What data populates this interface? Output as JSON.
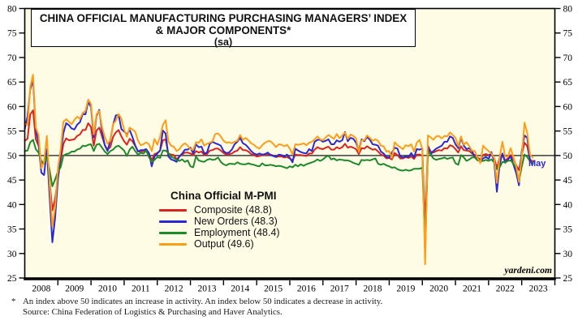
{
  "title": {
    "line1": "CHINA OFFICIAL MANUFACTURING PURCHASING MANAGERS’ INDEX",
    "line2": "& MAJOR COMPONENTS*",
    "line3": "(sa)"
  },
  "legend": {
    "header": "China Official M-PMI",
    "items": [
      {
        "label": "Composite (48.8)"
      },
      {
        "label": "New Orders (48.3)"
      },
      {
        "label": "Employment (48.4)"
      },
      {
        "label": "Output (49.6)"
      }
    ]
  },
  "annotation": {
    "latest_month": "May",
    "color": "#2a2ad0"
  },
  "watermark": "yardeni.com",
  "footnotes": {
    "marker": "*",
    "note": "An index above 50 indicates an increase in activity. An index below 50 indicates a decrease in activity.",
    "source": "Source: China Federation of Logistics & Purchasing and Haver Analytics."
  },
  "chart_data": {
    "type": "line",
    "frequency": "monthly",
    "x_start": "2008-01",
    "x_end": "2023-05",
    "axis_months_span": 192,
    "x_axis_years": [
      "2008",
      "2009",
      "2010",
      "2011",
      "2012",
      "2013",
      "2014",
      "2015",
      "2016",
      "2017",
      "2018",
      "2019",
      "2020",
      "2021",
      "2022",
      "2023"
    ],
    "ylim": [
      25,
      80
    ],
    "ytick_step": 5,
    "reference_line": 50,
    "plot_background": "#fffce6",
    "grid": "off",
    "legend_position": "center-left inside plot",
    "series": [
      {
        "name": "Composite",
        "color": "#d9251d",
        "values": [
          53.0,
          53.4,
          58.4,
          59.2,
          53.3,
          52.0,
          48.4,
          48.4,
          51.2,
          44.6,
          38.8,
          41.2,
          45.3,
          49.0,
          52.4,
          53.5,
          53.1,
          53.2,
          53.3,
          54.0,
          54.3,
          55.2,
          55.2,
          56.6,
          55.8,
          52.0,
          55.1,
          55.7,
          53.9,
          52.1,
          51.2,
          51.7,
          53.8,
          54.7,
          55.2,
          53.9,
          52.9,
          52.2,
          53.4,
          52.9,
          52.0,
          50.9,
          50.7,
          50.9,
          51.2,
          50.4,
          49.0,
          50.3,
          50.5,
          51.0,
          53.1,
          53.3,
          50.4,
          50.2,
          50.1,
          49.2,
          49.8,
          50.2,
          50.6,
          50.6,
          50.4,
          50.1,
          50.9,
          50.6,
          50.8,
          50.1,
          50.3,
          51.0,
          51.1,
          51.4,
          51.4,
          51.0,
          50.5,
          50.2,
          50.3,
          50.4,
          50.8,
          51.0,
          51.7,
          51.1,
          51.1,
          50.8,
          50.3,
          50.1,
          49.8,
          49.9,
          50.1,
          50.1,
          50.2,
          50.2,
          50.0,
          49.7,
          49.8,
          49.8,
          49.6,
          49.7,
          49.4,
          49.0,
          50.2,
          50.1,
          50.1,
          50.0,
          49.9,
          50.4,
          50.4,
          51.2,
          51.7,
          51.4,
          51.3,
          51.6,
          51.8,
          51.2,
          51.2,
          51.7,
          51.4,
          51.7,
          52.4,
          51.6,
          51.8,
          51.6,
          51.3,
          50.3,
          51.5,
          51.4,
          51.9,
          51.5,
          51.2,
          51.3,
          50.8,
          50.2,
          50.0,
          49.4,
          49.5,
          49.2,
          50.5,
          50.1,
          49.4,
          49.4,
          49.7,
          49.5,
          49.8,
          49.3,
          50.2,
          50.2,
          50.0,
          35.7,
          52.0,
          50.8,
          50.6,
          50.9,
          51.1,
          51.0,
          51.5,
          51.4,
          52.1,
          51.9,
          51.3,
          50.6,
          51.9,
          51.1,
          51.0,
          50.9,
          50.4,
          50.1,
          49.6,
          49.2,
          50.1,
          50.3,
          50.1,
          50.2,
          49.5,
          47.4,
          49.6,
          50.2,
          49.0,
          49.4,
          50.1,
          49.2,
          48.0,
          47.0,
          50.1,
          52.6,
          51.9,
          49.2,
          48.8
        ]
      },
      {
        "name": "New Orders",
        "color": "#2a2ad0",
        "values": [
          55.4,
          58.0,
          63.5,
          65.5,
          55.4,
          52.5,
          46.5,
          46.0,
          51.3,
          41.7,
          32.3,
          37.3,
          45.0,
          50.4,
          54.6,
          56.6,
          56.2,
          55.5,
          55.3,
          56.3,
          56.8,
          58.5,
          58.4,
          61.0,
          59.9,
          53.7,
          58.1,
          59.3,
          54.8,
          52.1,
          50.9,
          53.1,
          56.3,
          58.2,
          58.3,
          55.4,
          54.9,
          54.3,
          55.2,
          53.8,
          52.1,
          50.8,
          51.1,
          51.1,
          51.3,
          50.5,
          47.8,
          49.8,
          50.4,
          51.0,
          55.1,
          54.5,
          49.8,
          49.2,
          49.0,
          48.7,
          49.8,
          50.4,
          51.2,
          51.2,
          51.6,
          50.4,
          52.3,
          51.7,
          51.8,
          50.4,
          50.6,
          52.4,
          52.8,
          52.5,
          52.3,
          52.0,
          50.9,
          50.5,
          50.6,
          51.2,
          52.3,
          52.8,
          53.6,
          52.5,
          52.2,
          51.6,
          50.9,
          50.4,
          50.2,
          50.4,
          50.2,
          50.3,
          50.6,
          50.1,
          49.9,
          49.7,
          50.2,
          50.1,
          49.8,
          50.2,
          49.5,
          48.6,
          51.4,
          51.0,
          50.7,
          50.5,
          50.4,
          51.3,
          50.9,
          52.8,
          53.2,
          53.2,
          52.8,
          53.0,
          53.3,
          52.3,
          52.3,
          53.1,
          52.8,
          53.1,
          54.8,
          52.9,
          53.6,
          53.4,
          52.6,
          51.0,
          53.3,
          52.9,
          53.8,
          53.2,
          52.3,
          52.2,
          52.0,
          50.8,
          50.4,
          49.7,
          49.6,
          50.6,
          51.6,
          51.4,
          49.8,
          49.6,
          49.8,
          49.7,
          50.5,
          49.6,
          51.3,
          51.2,
          51.4,
          29.3,
          52.0,
          50.2,
          50.9,
          51.4,
          51.7,
          52.0,
          52.8,
          52.8,
          53.9,
          53.6,
          52.3,
          51.5,
          53.6,
          52.0,
          51.3,
          51.5,
          50.9,
          49.6,
          49.3,
          48.8,
          49.4,
          49.7,
          49.3,
          50.7,
          48.8,
          42.6,
          48.2,
          50.4,
          48.5,
          49.2,
          49.8,
          48.1,
          46.4,
          43.9,
          50.9,
          54.1,
          53.6,
          48.8,
          48.3
        ]
      },
      {
        "name": "Employment",
        "color": "#1d8a2a",
        "values": [
          50.9,
          51.0,
          52.7,
          53.2,
          51.3,
          50.6,
          48.9,
          48.4,
          49.8,
          47.0,
          43.7,
          45.1,
          46.7,
          47.6,
          50.0,
          50.3,
          50.4,
          50.8,
          50.8,
          51.2,
          51.4,
          52.0,
          51.9,
          52.2,
          52.3,
          50.9,
          52.2,
          52.4,
          51.6,
          50.8,
          50.3,
          50.9,
          51.2,
          51.8,
          52.0,
          51.5,
          51.0,
          49.9,
          51.2,
          51.8,
          50.9,
          50.2,
          50.5,
          50.4,
          51.0,
          49.7,
          48.7,
          49.1,
          49.7,
          49.5,
          51.0,
          51.0,
          50.5,
          49.7,
          49.5,
          49.1,
          48.9,
          49.2,
          48.7,
          49.0,
          47.8,
          47.6,
          49.8,
          49.0,
          48.8,
          48.7,
          49.1,
          49.3,
          49.1,
          49.2,
          49.6,
          48.7,
          48.2,
          48.0,
          48.3,
          48.3,
          48.2,
          48.6,
          48.3,
          48.2,
          48.2,
          48.4,
          48.2,
          48.1,
          47.9,
          47.8,
          48.4,
          48.0,
          48.0,
          48.1,
          48.0,
          47.8,
          47.9,
          47.8,
          47.6,
          47.4,
          47.8,
          47.6,
          48.1,
          47.8,
          48.2,
          47.9,
          48.2,
          48.4,
          48.6,
          48.8,
          49.2,
          48.9,
          49.2,
          49.7,
          50.0,
          49.2,
          49.4,
          49.0,
          49.2,
          49.1,
          49.0,
          49.0,
          48.8,
          48.5,
          48.3,
          48.1,
          49.1,
          49.0,
          49.1,
          49.0,
          49.2,
          49.4,
          48.3,
          48.1,
          48.3,
          48.0,
          47.8,
          47.5,
          47.6,
          47.2,
          47.0,
          46.9,
          47.1,
          46.9,
          47.0,
          47.3,
          47.3,
          47.3,
          47.5,
          31.8,
          50.9,
          50.2,
          49.4,
          49.1,
          49.3,
          49.4,
          49.6,
          49.3,
          49.5,
          49.6,
          48.4,
          48.1,
          50.1,
          49.6,
          48.9,
          49.2,
          49.6,
          49.6,
          49.0,
          48.8,
          48.9,
          49.1,
          48.9,
          49.2,
          48.6,
          47.2,
          47.6,
          48.7,
          48.6,
          48.9,
          49.0,
          48.3,
          47.4,
          44.8,
          47.7,
          50.2,
          49.7,
          48.8,
          48.4
        ]
      },
      {
        "name": "Output",
        "color": "#ff9d18",
        "values": [
          56.5,
          56.2,
          64.0,
          66.5,
          55.7,
          54.2,
          47.4,
          48.7,
          54.0,
          44.3,
          35.5,
          39.4,
          47.3,
          51.2,
          56.9,
          57.4,
          56.9,
          56.4,
          57.3,
          57.9,
          57.5,
          58.7,
          59.1,
          61.4,
          60.5,
          54.3,
          58.4,
          59.1,
          55.8,
          53.8,
          52.4,
          53.1,
          56.4,
          57.1,
          58.5,
          57.5,
          55.3,
          53.8,
          55.7,
          55.3,
          54.9,
          53.1,
          52.1,
          52.3,
          52.7,
          52.3,
          50.9,
          53.4,
          52.2,
          53.8,
          56.2,
          57.2,
          52.9,
          52.0,
          51.8,
          50.9,
          51.3,
          52.1,
          52.5,
          52.0,
          51.3,
          51.2,
          52.7,
          52.6,
          53.3,
          52.0,
          52.4,
          52.6,
          52.9,
          54.4,
          54.5,
          53.9,
          53.0,
          52.6,
          52.7,
          52.5,
          52.8,
          53.0,
          54.2,
          53.2,
          53.6,
          53.1,
          52.5,
          52.2,
          51.7,
          51.4,
          52.1,
          52.6,
          52.9,
          52.9,
          52.4,
          51.7,
          52.3,
          52.2,
          51.9,
          52.2,
          51.4,
          50.2,
          52.3,
          52.2,
          52.3,
          52.5,
          52.1,
          52.6,
          52.8,
          53.3,
          53.9,
          53.3,
          53.1,
          53.7,
          54.2,
          53.8,
          53.4,
          54.4,
          53.5,
          54.1,
          54.7,
          53.4,
          54.3,
          54.0,
          53.5,
          50.7,
          53.1,
          53.1,
          54.1,
          53.6,
          53.0,
          53.3,
          53.0,
          52.0,
          51.9,
          50.8,
          50.9,
          49.5,
          52.7,
          52.1,
          51.7,
          51.3,
          52.1,
          51.9,
          52.3,
          50.8,
          52.6,
          53.2,
          51.3,
          27.8,
          54.1,
          53.7,
          53.2,
          53.9,
          54.0,
          53.5,
          54.0,
          53.9,
          54.7,
          54.2,
          53.6,
          51.9,
          53.9,
          52.2,
          52.7,
          51.9,
          51.0,
          50.9,
          49.5,
          48.4,
          52.0,
          51.4,
          50.9,
          50.4,
          49.5,
          44.4,
          49.7,
          52.8,
          49.8,
          49.8,
          51.5,
          49.6,
          47.8,
          44.6,
          49.8,
          56.7,
          54.6,
          50.2,
          49.6
        ]
      }
    ]
  }
}
